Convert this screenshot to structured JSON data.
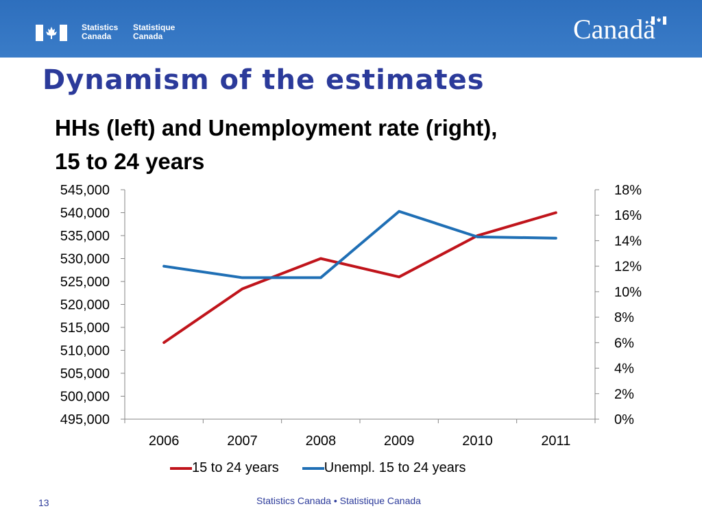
{
  "header": {
    "agency_en": [
      "Statistics",
      "Canada"
    ],
    "agency_fr": [
      "Statistique",
      "Canada"
    ],
    "wordmark": "Canadä"
  },
  "slide": {
    "title": "Dynamism of the estimates",
    "chart_title_lines": [
      "HHs (left) and Unemployment rate (right),",
      "15 to 24 years"
    ],
    "number": "13",
    "footer": "Statistics Canada • Statistique Canada"
  },
  "colors": {
    "banner": "#3a7cc8",
    "title": "#2b3a9a",
    "series_hh": "#c0141b",
    "series_unempl": "#1f6fb5"
  },
  "chart_data": {
    "type": "line",
    "categories": [
      "2006",
      "2007",
      "2008",
      "2009",
      "2010",
      "2011"
    ],
    "left_axis": {
      "range": [
        495000,
        545000
      ],
      "ticks": [
        "495,000",
        "500,000",
        "505,000",
        "510,000",
        "515,000",
        "520,000",
        "525,000",
        "530,000",
        "535,000",
        "540,000",
        "545,000"
      ]
    },
    "right_axis": {
      "range": [
        0,
        18
      ],
      "ticks": [
        "0%",
        "2%",
        "4%",
        "6%",
        "8%",
        "10%",
        "12%",
        "14%",
        "16%",
        "18%"
      ]
    },
    "series": [
      {
        "name": "15 to 24 years",
        "axis": "left",
        "color": "#c0141b",
        "values": [
          511700,
          523400,
          530000,
          526000,
          535000,
          540000
        ]
      },
      {
        "name": "Unempl. 15 to 24 years",
        "axis": "right",
        "color": "#1f6fb5",
        "values": [
          12.0,
          11.1,
          11.1,
          16.3,
          14.3,
          14.2
        ]
      }
    ],
    "grid": false,
    "legend": "bottom"
  }
}
